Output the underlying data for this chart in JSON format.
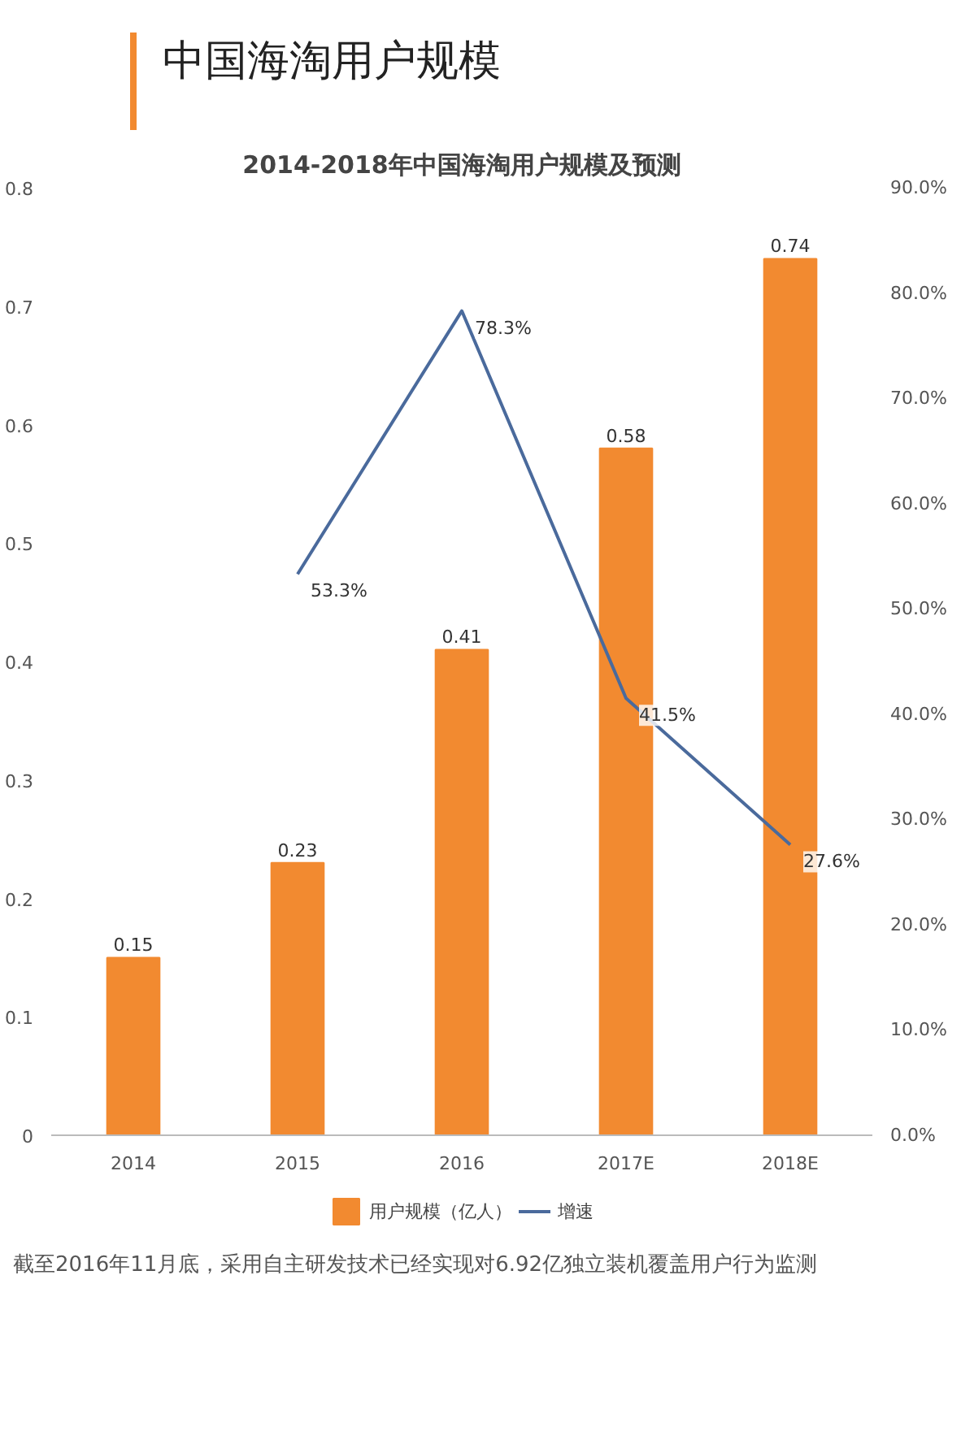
{
  "chart_data": {
    "type": "bar",
    "title": "中国海淘用户规模",
    "subtitle": "2014-2018年中国海淘用户规模及预测",
    "categories": [
      "2014",
      "2015",
      "2016",
      "2017E",
      "2018E"
    ],
    "series": [
      {
        "name": "用户规模（亿人）",
        "type": "bar",
        "color": "#f28a30",
        "values": [
          0.15,
          0.23,
          0.41,
          0.58,
          0.74
        ],
        "value_labels": [
          "0.15",
          "0.23",
          "0.41",
          "0.58",
          "0.74"
        ]
      },
      {
        "name": "增速",
        "type": "line",
        "axis": "y2",
        "color": "#4a6a9c",
        "values": [
          null,
          53.3,
          78.3,
          41.5,
          27.6
        ],
        "value_labels": [
          null,
          "53.3%",
          "78.3%",
          "41.5%",
          "27.6%"
        ]
      }
    ],
    "ylim": [
      0,
      0.8
    ],
    "yticks": [
      0,
      0.1,
      0.2,
      0.3,
      0.4,
      0.5,
      0.6,
      0.7,
      0.8
    ],
    "y2lim": [
      0,
      90
    ],
    "y2ticks": [
      {
        "value": 0,
        "label": "0.0%"
      },
      {
        "value": 10,
        "label": "10.0%"
      },
      {
        "value": 20,
        "label": "20.0%"
      },
      {
        "value": 30,
        "label": "30.0%"
      },
      {
        "value": 40,
        "label": "40.0%"
      },
      {
        "value": 50,
        "label": "50.0%"
      },
      {
        "value": 60,
        "label": "60.0%"
      },
      {
        "value": 70,
        "label": "70.0%"
      },
      {
        "value": 80,
        "label": "80.0%"
      },
      {
        "value": 90,
        "label": "90.0%"
      }
    ],
    "grid": false,
    "legend": "bottom",
    "line_style": "solid",
    "marker": "none",
    "annotations": [
      "截至2016年11月底，采用自主研发技术已经实现对6.92亿独立装机覆盖用户行为监测"
    ]
  }
}
